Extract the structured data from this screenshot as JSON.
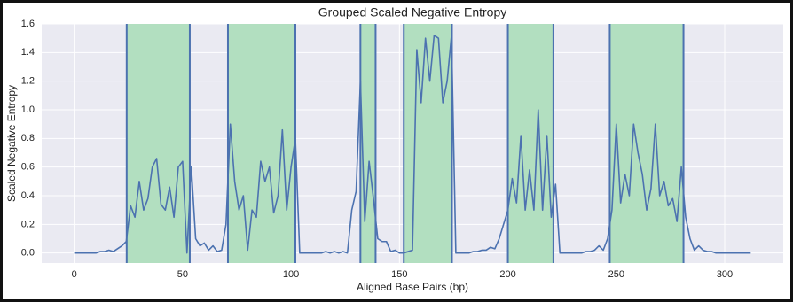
{
  "chart_data": {
    "type": "line",
    "title": "Grouped Scaled Negative Entropy",
    "x_label": "Aligned Base Pairs (bp)",
    "y_label": "Scaled Negative Entropy",
    "xlim": [
      -15,
      327
    ],
    "ylim": [
      -0.07,
      1.6
    ],
    "xticks": [
      0,
      50,
      100,
      150,
      200,
      250,
      300
    ],
    "yticks": [
      {
        "value": 0,
        "label": "0.0"
      },
      0.2,
      0.4,
      0.6,
      0.8,
      {
        "value": 1,
        "label": "1.0"
      },
      1.2,
      1.4,
      1.6
    ],
    "grid": true,
    "spans": [
      [
        24.2,
        53.3
      ],
      [
        70.9,
        102
      ],
      [
        132,
        139
      ],
      [
        152,
        174.2
      ],
      [
        200,
        221
      ],
      [
        247,
        281
      ]
    ],
    "span_color": "#b2dfc0",
    "span_edge_color": "#4c72b0",
    "series": [
      {
        "color": "#4c72b0",
        "x": [
          0,
          2,
          4,
          6,
          8,
          10,
          12,
          14,
          16,
          18,
          20,
          22,
          24,
          26,
          28,
          30,
          32,
          34,
          36,
          38,
          40,
          42,
          44,
          46,
          48,
          50,
          52,
          54,
          56,
          58,
          60,
          62,
          64,
          66,
          68,
          70,
          72,
          74,
          76,
          78,
          80,
          82,
          84,
          86,
          88,
          90,
          92,
          94,
          96,
          98,
          100,
          102,
          104,
          106,
          108,
          110,
          112,
          114,
          116,
          118,
          120,
          122,
          124,
          126,
          128,
          130,
          132,
          134,
          136,
          138,
          140,
          142,
          144,
          146,
          148,
          150,
          152,
          154,
          156,
          158,
          160,
          162,
          164,
          166,
          168,
          170,
          172,
          174,
          176,
          178,
          180,
          182,
          184,
          186,
          188,
          190,
          192,
          194,
          196,
          198,
          200,
          202,
          204,
          206,
          208,
          210,
          212,
          214,
          216,
          218,
          220,
          222,
          224,
          226,
          228,
          230,
          232,
          234,
          236,
          238,
          240,
          242,
          244,
          246,
          248,
          250,
          252,
          254,
          256,
          258,
          260,
          262,
          264,
          266,
          268,
          270,
          272,
          274,
          276,
          278,
          280,
          282,
          284,
          286,
          288,
          290,
          292,
          294,
          296,
          298,
          300,
          302,
          304,
          306,
          308,
          310,
          312
        ],
        "values": [
          0,
          0,
          0,
          0,
          0,
          0,
          0.01,
          0.01,
          0.02,
          0.01,
          0.03,
          0.05,
          0.08,
          0.33,
          0.25,
          0.5,
          0.3,
          0.38,
          0.6,
          0.66,
          0.34,
          0.3,
          0.46,
          0.25,
          0.6,
          0.64,
          0,
          0.6,
          0.1,
          0.05,
          0.07,
          0.02,
          0.05,
          0.01,
          0.02,
          0.2,
          0.9,
          0.5,
          0.3,
          0.4,
          0.02,
          0.3,
          0.25,
          0.64,
          0.5,
          0.6,
          0.28,
          0.4,
          0.86,
          0.3,
          0.6,
          0.8,
          0,
          0,
          0,
          0,
          0,
          0,
          0.01,
          0,
          0.01,
          0,
          0.01,
          0,
          0.3,
          0.43,
          1.2,
          0.22,
          0.64,
          0.38,
          0.1,
          0.08,
          0.08,
          0.01,
          0.02,
          0,
          0,
          0.01,
          0.02,
          1.42,
          1.05,
          1.5,
          1.2,
          1.52,
          1.5,
          1.05,
          1.2,
          1.52,
          0,
          0,
          0,
          0,
          0.01,
          0.01,
          0.02,
          0.02,
          0.04,
          0.03,
          0.1,
          0.2,
          0.3,
          0.52,
          0.35,
          0.82,
          0.3,
          0.58,
          0.3,
          1.0,
          0.3,
          0.82,
          0.25,
          0.48,
          0,
          0,
          0,
          0,
          0,
          0,
          0.01,
          0.01,
          0.02,
          0.05,
          0.02,
          0.1,
          0.3,
          0.9,
          0.35,
          0.55,
          0.4,
          0.9,
          0.7,
          0.55,
          0.3,
          0.45,
          0.9,
          0.4,
          0.5,
          0.33,
          0.38,
          0.22,
          0.6,
          0.25,
          0.1,
          0.02,
          0.05,
          0.02,
          0.01,
          0.01,
          0,
          0,
          0,
          0,
          0,
          0,
          0,
          0,
          0
        ]
      }
    ]
  }
}
